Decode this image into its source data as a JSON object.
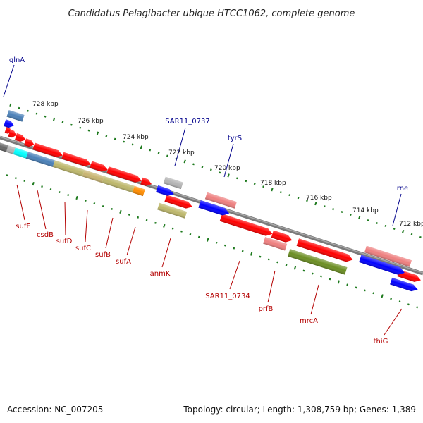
{
  "title": "Candidatus Pelagibacter ubique HTCC1062, complete genome",
  "footer": {
    "accession": "Accession: NC_007205",
    "summary": "Topology: circular; Length: 1,308,759 bp; Genes: 1,389"
  },
  "scale_labels": [
    "728 kbp",
    "726 kbp",
    "724 kbp",
    "722 kbp",
    "720 kbp",
    "718 kbp",
    "716 kbp",
    "714 kbp",
    "712 kbp"
  ],
  "top_labels": [
    "glnA",
    "SAR11_0737",
    "tyrS",
    "rne"
  ],
  "bottom_labels": [
    "sufE",
    "csdB",
    "sufD",
    "sufC",
    "sufB",
    "sufA",
    "anmK",
    "SAR11_0734",
    "prfB",
    "mrcA",
    "thiG"
  ],
  "colors": {
    "backbone": "#7a7a7a",
    "tick": "#1e7a1e",
    "red": "#ff0000",
    "blue": "#0000ff",
    "pink": "#ee7f7f",
    "grey": "#b4b4b4",
    "steel": "#4a80b8",
    "khaki": "#bdb76b",
    "olive": "#6b8e23",
    "orange": "#ff8c00",
    "cyan": "#00ffff"
  }
}
